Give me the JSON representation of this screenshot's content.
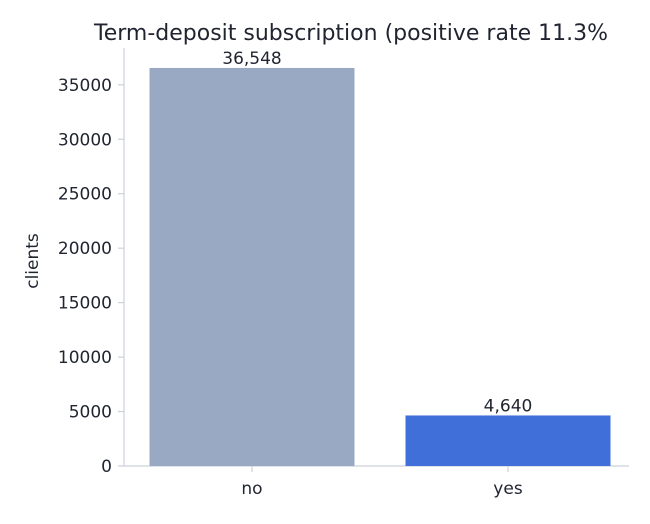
{
  "chart_data": {
    "type": "bar",
    "title": "Term-deposit subscription (positive rate 11.3%",
    "xlabel": "",
    "ylabel": "clients",
    "categories": [
      "no",
      "yes"
    ],
    "values": [
      36548,
      4640
    ],
    "value_labels": [
      "36,548",
      "4,640"
    ],
    "colors": [
      "#99a8c3",
      "#416fd9"
    ],
    "ylim": [
      0,
      38380
    ],
    "y_ticks": [
      0,
      5000,
      10000,
      15000,
      20000,
      25000,
      30000,
      35000
    ],
    "grid": false,
    "legend": "none"
  }
}
